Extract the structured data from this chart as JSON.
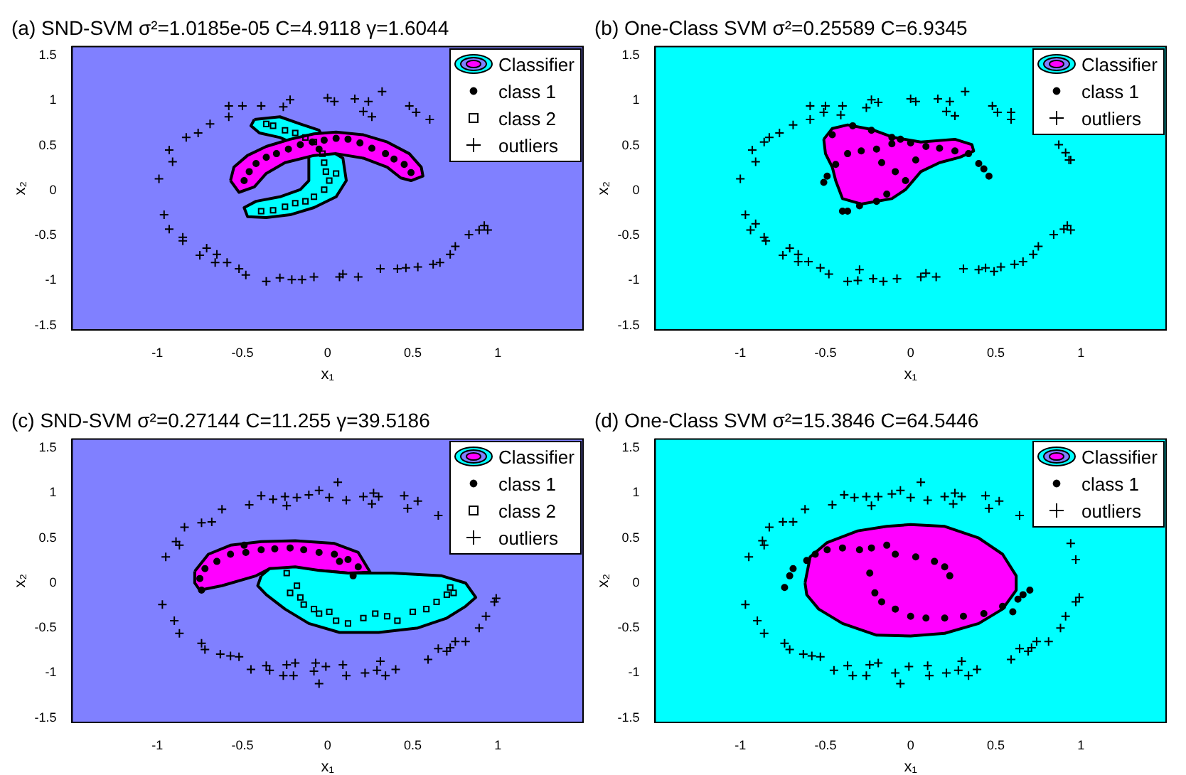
{
  "chart_data": [
    {
      "type": "scatter",
      "title": "(a) SND-SVM σ²=1.0185e-05 C=4.9118 γ=1.6044",
      "xlabel": "x₁",
      "ylabel": "x₂",
      "xlim": [
        -1.5,
        1.5
      ],
      "ylim": [
        -1.55,
        1.6
      ],
      "xticks": [
        -1,
        -0.5,
        0,
        0.5,
        1
      ],
      "yticks": [
        -1.5,
        -1,
        -0.5,
        0,
        0.5,
        1,
        1.5
      ],
      "grid": false,
      "legend": "top right",
      "bands": [
        {
          "axis": "x",
          "from": -1.5,
          "to": 1.5,
          "color": "#8080ff"
        }
      ],
      "series": [
        {
          "type": "area",
          "color": "#00ffff",
          "x": [
            -0.43,
            -0.28,
            -0.16,
            -0.05,
            0.02,
            0.09,
            0.11,
            0.05,
            -0.08,
            -0.22,
            -0.36,
            -0.47,
            -0.49,
            -0.42,
            -0.28,
            -0.16,
            -0.11,
            -0.11,
            -0.16,
            -0.28,
            -0.4,
            -0.45
          ],
          "values": [
            0.79,
            0.82,
            0.74,
            0.67,
            0.44,
            0.36,
            0.11,
            -0.07,
            -0.19,
            -0.27,
            -0.3,
            -0.29,
            -0.19,
            -0.12,
            -0.07,
            0.01,
            0.11,
            0.36,
            0.49,
            0.59,
            0.64,
            0.72
          ]
        },
        {
          "type": "area",
          "name": "Classifier",
          "color": "#ff00ff",
          "x": [
            -0.57,
            -0.55,
            -0.47,
            -0.36,
            -0.22,
            -0.08,
            0.05,
            0.21,
            0.35,
            0.48,
            0.55,
            0.56,
            0.49,
            0.43,
            0.35,
            0.21,
            0.05,
            -0.08,
            -0.25,
            -0.36,
            -0.43,
            -0.52
          ],
          "values": [
            0.11,
            0.26,
            0.39,
            0.49,
            0.57,
            0.63,
            0.65,
            0.62,
            0.54,
            0.41,
            0.26,
            0.16,
            0.11,
            0.14,
            0.26,
            0.36,
            0.41,
            0.39,
            0.31,
            0.19,
            0.04,
            -0.02
          ]
        },
        {
          "name": "class 1",
          "color": "#000000",
          "marker": "circle",
          "x": [
            -0.49,
            -0.46,
            -0.42,
            -0.36,
            -0.3,
            -0.23,
            -0.16,
            -0.09,
            -0.02,
            0.05,
            0.12,
            0.19,
            0.26,
            0.34,
            0.39,
            0.45,
            0.49,
            -0.05
          ],
          "values": [
            0.11,
            0.21,
            0.3,
            0.37,
            0.41,
            0.46,
            0.51,
            0.54,
            0.56,
            0.58,
            0.57,
            0.53,
            0.47,
            0.41,
            0.35,
            0.29,
            0.2,
            0.46
          ]
        },
        {
          "name": "class 2",
          "color": "#000000",
          "marker": "square",
          "x": [
            -0.36,
            -0.32,
            -0.25,
            -0.19,
            -0.13,
            -0.08,
            -0.03,
            -0.02,
            -0.01,
            0.01,
            0.05,
            -0.02,
            -0.08,
            -0.13,
            -0.19,
            -0.25,
            -0.32,
            -0.39
          ],
          "values": [
            0.74,
            0.72,
            0.67,
            0.64,
            0.59,
            0.54,
            0.41,
            0.31,
            0.21,
            0.11,
            0.19,
            0.01,
            -0.07,
            -0.12,
            -0.14,
            -0.18,
            -0.22,
            -0.23
          ]
        },
        {
          "name": "outliers",
          "color": "#000000",
          "marker": "cross",
          "x": [
            -0.99,
            -0.91,
            -0.93,
            -0.83,
            -0.76,
            -0.69,
            -0.58,
            -0.58,
            -0.5,
            -0.39,
            -0.26,
            -0.22,
            0.0,
            0.04,
            0.16,
            0.24,
            0.32,
            0.21,
            0.26,
            0.48,
            0.52,
            0.6,
            -0.96,
            -0.93,
            -0.85,
            -0.85,
            -0.71,
            -0.75,
            -0.65,
            -0.66,
            -0.59,
            -0.52,
            -0.48,
            -0.36,
            -0.28,
            -0.21,
            -0.15,
            -0.08,
            0.07,
            0.09,
            0.18,
            0.31,
            0.41,
            0.46,
            0.53,
            0.62,
            0.66,
            0.72,
            0.75,
            0.83,
            0.89,
            0.92,
            0.94
          ],
          "values": [
            0.13,
            0.32,
            0.45,
            0.59,
            0.64,
            0.74,
            0.82,
            0.94,
            0.94,
            0.94,
            0.93,
            1.01,
            1.03,
            0.99,
            1.02,
            0.99,
            1.1,
            0.88,
            0.82,
            0.94,
            0.87,
            0.79,
            -0.27,
            -0.43,
            -0.52,
            -0.56,
            -0.64,
            -0.72,
            -0.71,
            -0.8,
            -0.8,
            -0.87,
            -0.94,
            -1.01,
            -0.97,
            -0.99,
            -0.99,
            -0.96,
            -0.96,
            -0.93,
            -0.96,
            -0.87,
            -0.87,
            -0.86,
            -0.85,
            -0.82,
            -0.8,
            -0.71,
            -0.62,
            -0.49,
            -0.44,
            -0.39,
            -0.44
          ]
        }
      ]
    },
    {
      "type": "scatter",
      "title": "(b) One-Class SVM σ²=0.25589 C=6.9345",
      "xlabel": "x₁",
      "ylabel": "x₂",
      "xlim": [
        -1.5,
        1.5
      ],
      "ylim": [
        -1.55,
        1.6
      ],
      "xticks": [
        -1,
        -0.5,
        0,
        0.5,
        1
      ],
      "yticks": [
        -1.5,
        -1,
        -0.5,
        0,
        0.5,
        1,
        1.5
      ],
      "grid": false,
      "legend": "top right",
      "bands": [
        {
          "axis": "x",
          "from": -1.5,
          "to": 1.5,
          "color": "#00ffff"
        }
      ],
      "series": [
        {
          "type": "area",
          "name": "Classifier",
          "color": "#ff00ff",
          "x": [
            -0.51,
            -0.46,
            -0.37,
            -0.23,
            -0.1,
            0.06,
            0.26,
            0.36,
            0.37,
            0.29,
            0.17,
            0.06,
            -0.03,
            -0.11,
            -0.29,
            -0.4,
            -0.44,
            -0.46,
            -0.5
          ],
          "values": [
            0.57,
            0.69,
            0.73,
            0.68,
            0.59,
            0.54,
            0.57,
            0.51,
            0.44,
            0.37,
            0.31,
            0.21,
            0.01,
            -0.09,
            -0.15,
            -0.09,
            0.11,
            0.26,
            0.41
          ]
        },
        {
          "name": "class 1",
          "color": "#000000",
          "marker": "circle",
          "x": [
            -0.51,
            -0.49,
            -0.44,
            -0.37,
            -0.29,
            -0.2,
            -0.11,
            -0.06,
            0,
            0.09,
            0.17,
            0.26,
            0.34,
            0.4,
            0.43,
            0.46,
            -0.46,
            -0.34,
            -0.23,
            -0.11,
            -0.17,
            -0.09,
            -0.14,
            -0.2,
            -0.3,
            -0.37,
            -0.4,
            -0.03,
            0.03
          ],
          "values": [
            0.09,
            0.16,
            0.29,
            0.41,
            0.44,
            0.46,
            0.52,
            0.57,
            0.53,
            0.49,
            0.47,
            0.44,
            0.41,
            0.3,
            0.24,
            0.16,
            0.62,
            0.72,
            0.67,
            0.59,
            0.31,
            0.21,
            -0.04,
            -0.12,
            -0.17,
            -0.23,
            -0.23,
            0.11,
            0.34
          ]
        },
        {
          "name": "outliers",
          "color": "#000000",
          "marker": "cross",
          "x": [
            -1.0,
            -0.91,
            -0.93,
            -0.86,
            -0.83,
            -0.77,
            -0.69,
            -0.59,
            -0.59,
            -0.51,
            -0.5,
            -0.41,
            -0.4,
            -0.26,
            -0.23,
            -0.19,
            0,
            0.03,
            0.16,
            0.23,
            0.32,
            0.21,
            0.26,
            0.48,
            0.51,
            0.59,
            0.59,
            0.87,
            0.91,
            0.93,
            0.94,
            -0.97,
            -0.94,
            -0.91,
            -0.86,
            -0.85,
            -0.71,
            -0.75,
            -0.66,
            -0.66,
            -0.6,
            -0.53,
            -0.48,
            -0.37,
            -0.31,
            -0.3,
            -0.22,
            -0.16,
            -0.08,
            0.06,
            0.09,
            0.15,
            0.31,
            0.4,
            0.44,
            0.49,
            0.53,
            0.61,
            0.66,
            0.72,
            0.75,
            0.84,
            0.9,
            0.92,
            0.94
          ],
          "values": [
            0.13,
            0.32,
            0.45,
            0.54,
            0.59,
            0.64,
            0.73,
            0.79,
            0.94,
            0.87,
            0.94,
            0.84,
            0.94,
            0.92,
            1.01,
            0.98,
            1.02,
            0.99,
            1.02,
            0.99,
            1.1,
            0.88,
            0.83,
            0.94,
            0.87,
            0.87,
            0.79,
            0.51,
            0.42,
            0.34,
            0.34,
            -0.27,
            -0.44,
            -0.37,
            -0.52,
            -0.56,
            -0.64,
            -0.72,
            -0.71,
            -0.79,
            -0.79,
            -0.86,
            -0.93,
            -1.01,
            -1.0,
            -0.88,
            -0.98,
            -1.01,
            -0.98,
            -0.96,
            -0.92,
            -0.96,
            -0.87,
            -0.88,
            -0.86,
            -0.9,
            -0.85,
            -0.82,
            -0.79,
            -0.71,
            -0.62,
            -0.49,
            -0.43,
            -0.39,
            -0.44
          ]
        }
      ]
    },
    {
      "type": "scatter",
      "title": "(c) SND-SVM σ²=0.27144 C=11.255 γ=39.5186",
      "xlabel": "x₁",
      "ylabel": "x₂",
      "xlim": [
        -1.5,
        1.5
      ],
      "ylim": [
        -1.55,
        1.6
      ],
      "xticks": [
        -1,
        -0.5,
        0,
        0.5,
        1
      ],
      "yticks": [
        -1.5,
        -1,
        -0.5,
        0,
        0.5,
        1,
        1.5
      ],
      "grid": false,
      "legend": "top right",
      "bands": [
        {
          "axis": "x",
          "from": -1.5,
          "to": 1.5,
          "color": "#8080ff"
        }
      ],
      "series": [
        {
          "type": "area",
          "name": "Classifier",
          "color": "#ff00ff",
          "x": [
            -0.78,
            -0.7,
            -0.57,
            -0.39,
            -0.19,
            0.04,
            0.18,
            0.25,
            0.12,
            -0.05,
            -0.34,
            -0.42,
            -0.62,
            -0.75,
            -0.78
          ],
          "values": [
            0.13,
            0.32,
            0.42,
            0.46,
            0.47,
            0.44,
            0.34,
            0.12,
            0.11,
            0.14,
            0.16,
            0.08,
            -0.03,
            -0.08,
            0
          ]
        },
        {
          "type": "area",
          "color": "#00ffff",
          "x": [
            -0.39,
            -0.34,
            -0.19,
            -0.05,
            0.12,
            0.38,
            0.67,
            0.81,
            0.87,
            0.81,
            0.7,
            0.53,
            0.3,
            0.07,
            -0.11,
            -0.25,
            -0.36,
            -0.41
          ],
          "values": [
            0.08,
            0.16,
            0.18,
            0.14,
            0.11,
            0.11,
            0.08,
            0,
            -0.16,
            -0.26,
            -0.39,
            -0.5,
            -0.55,
            -0.55,
            -0.45,
            -0.29,
            -0.13,
            -0.03
          ]
        },
        {
          "name": "class 1",
          "color": "#000000",
          "marker": "circle",
          "x": [
            -0.74,
            -0.75,
            -0.72,
            -0.65,
            -0.57,
            -0.48,
            -0.39,
            -0.31,
            -0.22,
            -0.14,
            -0.05,
            0.04,
            0.12,
            0.18,
            0.15,
            0.07,
            -0.49
          ],
          "values": [
            -0.08,
            0.05,
            0.16,
            0.24,
            0.32,
            0.34,
            0.37,
            0.38,
            0.39,
            0.37,
            0.34,
            0.32,
            0.26,
            0.18,
            0.08,
            0.24,
            0.42
          ]
        },
        {
          "name": "class 2",
          "color": "#000000",
          "marker": "square",
          "x": [
            -0.24,
            -0.22,
            -0.18,
            -0.16,
            -0.08,
            -0.05,
            0.01,
            0.05,
            0.12,
            0.21,
            0.28,
            0.35,
            0.41,
            0.5,
            0.58,
            0.64,
            0.7,
            0.72,
            0.74,
            -0.14
          ],
          "values": [
            0.11,
            -0.11,
            -0.03,
            -0.16,
            -0.29,
            -0.34,
            -0.32,
            -0.42,
            -0.45,
            -0.39,
            -0.34,
            -0.37,
            -0.42,
            -0.32,
            -0.29,
            -0.21,
            -0.13,
            -0.05,
            -0.11,
            -0.24
          ]
        },
        {
          "name": "outliers",
          "color": "#000000",
          "marker": "cross",
          "x": [
            -0.95,
            -0.89,
            -0.87,
            -0.84,
            -0.74,
            -0.68,
            -0.62,
            -0.46,
            -0.39,
            -0.32,
            -0.25,
            -0.24,
            -0.18,
            -0.11,
            -0.05,
            0.01,
            0.06,
            0.11,
            0.21,
            0.27,
            0.3,
            0.26,
            0.45,
            0.47,
            0.53,
            0.65,
            -0.97,
            -0.9,
            -0.87,
            -0.74,
            -0.72,
            -0.63,
            -0.57,
            -0.52,
            -0.45,
            -0.36,
            -0.34,
            -0.26,
            -0.24,
            -0.19,
            -0.2,
            -0.07,
            -0.08,
            -0.05,
            -0.01,
            0.09,
            0.11,
            0.22,
            0.29,
            0.31,
            0.34,
            0.4,
            0.59,
            0.65,
            0.7,
            0.72,
            0.75,
            0.81,
            0.89,
            0.93,
            0.98,
            0.99
          ],
          "values": [
            0.29,
            0.46,
            0.42,
            0.62,
            0.67,
            0.68,
            0.82,
            0.87,
            0.97,
            0.93,
            0.96,
            0.86,
            0.95,
            0.98,
            1.03,
            0.95,
            1.12,
            0.92,
            0.96,
            1.0,
            0.96,
            0.88,
            0.97,
            0.83,
            0.91,
            0.75,
            -0.24,
            -0.42,
            -0.56,
            -0.67,
            -0.74,
            -0.79,
            -0.81,
            -0.82,
            -0.96,
            -0.92,
            -0.97,
            -1.03,
            -0.91,
            -0.89,
            -1.03,
            -0.89,
            -0.98,
            -1.12,
            -0.93,
            -0.91,
            -1.03,
            -1.0,
            -0.97,
            -0.87,
            -1.03,
            -0.96,
            -0.85,
            -0.73,
            -0.76,
            -0.72,
            -0.65,
            -0.65,
            -0.5,
            -0.37,
            -0.21,
            -0.17
          ]
        }
      ]
    },
    {
      "type": "scatter",
      "title": "(d) One-Class SVM σ²=15.3846 C=64.5446",
      "xlabel": "x₁",
      "ylabel": "x₂",
      "xlim": [
        -1.5,
        1.5
      ],
      "ylim": [
        -1.55,
        1.6
      ],
      "xticks": [
        -1,
        -0.5,
        0,
        0.5,
        1
      ],
      "yticks": [
        -1.5,
        -1,
        -0.5,
        0,
        0.5,
        1,
        1.5
      ],
      "grid": false,
      "legend": "top right",
      "bands": [
        {
          "axis": "x",
          "from": -1.5,
          "to": 1.5,
          "color": "#00ffff"
        }
      ],
      "series": [
        {
          "type": "area",
          "name": "Classifier",
          "color": "#ff00ff",
          "x": [
            -0.62,
            -0.59,
            -0.49,
            -0.31,
            -0.14,
            0,
            0.2,
            0.4,
            0.54,
            0.62,
            0.62,
            0.54,
            0.4,
            0.2,
            0,
            -0.2,
            -0.4,
            -0.54,
            -0.61
          ],
          "values": [
            0,
            0.29,
            0.45,
            0.58,
            0.63,
            0.65,
            0.63,
            0.5,
            0.32,
            0.08,
            -0.08,
            -0.29,
            -0.45,
            -0.56,
            -0.59,
            -0.58,
            -0.45,
            -0.29,
            -0.13
          ]
        },
        {
          "name": "class 1",
          "color": "#000000",
          "marker": "circle",
          "x": [
            -0.74,
            -0.71,
            -0.69,
            -0.61,
            -0.56,
            -0.49,
            -0.4,
            -0.3,
            -0.23,
            -0.14,
            -0.09,
            0.03,
            0.14,
            0.2,
            0.23,
            -0.24,
            -0.21,
            -0.17,
            -0.09,
            0,
            0.09,
            0.2,
            0.31,
            0.43,
            0.54,
            0.63,
            0.7,
            0.66,
            0.6
          ],
          "values": [
            -0.05,
            0.08,
            0.16,
            0.25,
            0.32,
            0.37,
            0.39,
            0.37,
            0.39,
            0.42,
            0.32,
            0.29,
            0.24,
            0.18,
            0.08,
            0.11,
            -0.11,
            -0.21,
            -0.29,
            -0.37,
            -0.39,
            -0.39,
            -0.37,
            -0.34,
            -0.26,
            -0.18,
            -0.08,
            -0.13,
            -0.32
          ]
        },
        {
          "name": "outliers",
          "color": "#000000",
          "marker": "cross",
          "x": [
            -0.95,
            -0.87,
            -0.86,
            -0.83,
            -0.75,
            -0.69,
            -0.62,
            -0.46,
            -0.39,
            -0.33,
            -0.26,
            -0.23,
            -0.19,
            -0.11,
            -0.06,
            0,
            0.06,
            0.1,
            0.2,
            0.26,
            0.3,
            0.25,
            0.44,
            0.46,
            0.52,
            0.64,
            0.94,
            0.97,
            -0.97,
            -0.9,
            -0.86,
            -0.74,
            -0.71,
            -0.63,
            -0.58,
            -0.53,
            -0.45,
            -0.37,
            -0.34,
            -0.26,
            -0.24,
            -0.19,
            -0.09,
            -0.06,
            -0.01,
            0.1,
            0.11,
            0.21,
            0.28,
            0.3,
            0.34,
            0.39,
            0.59,
            0.64,
            0.69,
            0.71,
            0.74,
            0.81,
            0.88,
            0.91,
            0.97,
            0.99
          ],
          "values": [
            0.29,
            0.47,
            0.42,
            0.62,
            0.68,
            0.68,
            0.82,
            0.87,
            0.98,
            0.95,
            0.96,
            0.86,
            0.96,
            0.99,
            1.03,
            0.95,
            1.12,
            0.92,
            0.96,
            1.0,
            0.96,
            0.88,
            0.97,
            0.83,
            0.91,
            0.75,
            0.44,
            0.26,
            -0.24,
            -0.42,
            -0.56,
            -0.67,
            -0.74,
            -0.79,
            -0.81,
            -0.82,
            -0.97,
            -0.92,
            -1.03,
            -1.03,
            -0.91,
            -0.89,
            -1.0,
            -1.12,
            -0.93,
            -0.92,
            -1.03,
            -1.0,
            -0.97,
            -0.87,
            -1.03,
            -0.96,
            -0.85,
            -0.73,
            -0.76,
            -0.72,
            -0.65,
            -0.65,
            -0.5,
            -0.37,
            -0.21,
            -0.16
          ]
        }
      ]
    }
  ]
}
